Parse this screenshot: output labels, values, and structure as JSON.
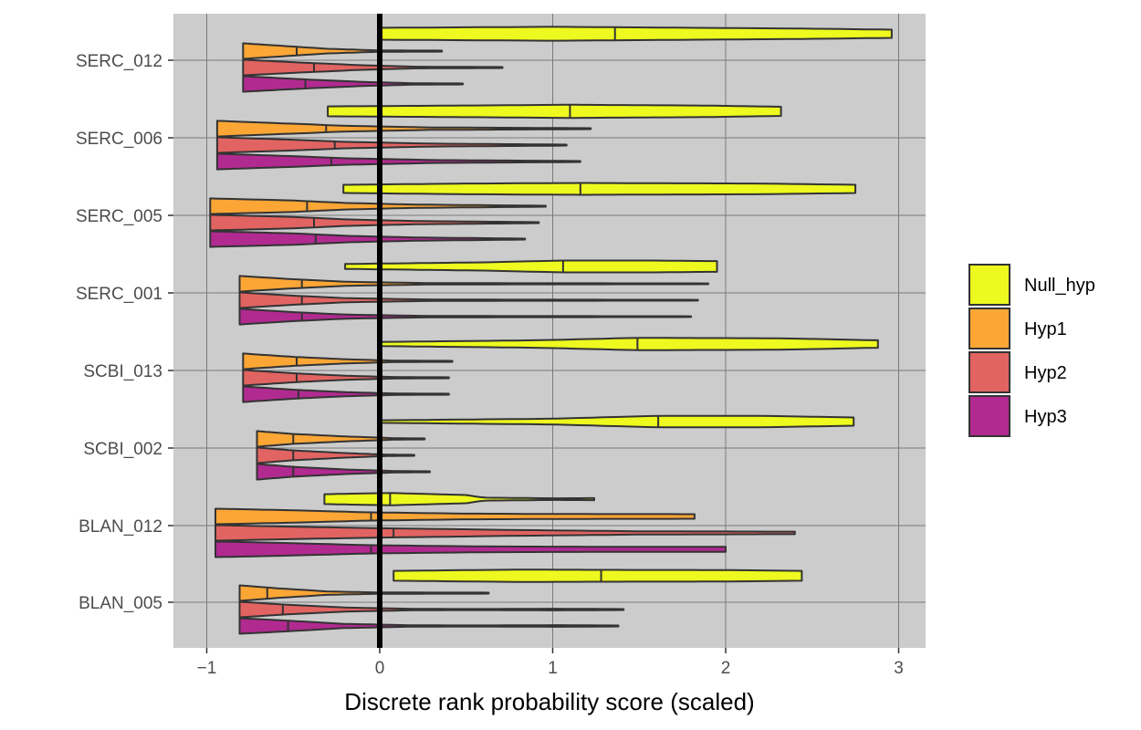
{
  "chart_data": {
    "type": "violin",
    "orientation": "horizontal",
    "xlabel": "Discrete rank probability score (scaled)",
    "ylabel": "",
    "xlim": [
      -1.2,
      3.15
    ],
    "x_ticks": [
      -1,
      0,
      1,
      2,
      3
    ],
    "x_tick_labels": [
      "−1",
      "0",
      "1",
      "2",
      "3"
    ],
    "reference_line_x": 0,
    "grid": true,
    "legend_position": "right",
    "categories": [
      "SERC_012",
      "SERC_006",
      "SERC_005",
      "SERC_001",
      "SCBI_013",
      "SCBI_002",
      "BLAN_012",
      "BLAN_005"
    ],
    "series": [
      {
        "name": "Null_hyp",
        "color": "#eefa1f",
        "violins": [
          {
            "min": -0.01,
            "max": 2.96,
            "median": 1.36,
            "profile": [
              [
                -0.01,
                0.72
              ],
              [
                1.0,
                0.85
              ],
              [
                1.36,
                0.8
              ],
              [
                2.5,
                0.62
              ],
              [
                2.96,
                0.5
              ]
            ]
          },
          {
            "min": -0.3,
            "max": 2.32,
            "median": 1.1,
            "profile": [
              [
                -0.3,
                0.6
              ],
              [
                0.8,
                0.75
              ],
              [
                1.1,
                0.8
              ],
              [
                1.9,
                0.7
              ],
              [
                2.32,
                0.55
              ]
            ]
          },
          {
            "min": -0.21,
            "max": 2.75,
            "median": 1.16,
            "profile": [
              [
                -0.21,
                0.5
              ],
              [
                0.5,
                0.65
              ],
              [
                1.16,
                0.72
              ],
              [
                2.2,
                0.65
              ],
              [
                2.75,
                0.5
              ]
            ]
          },
          {
            "min": -0.2,
            "max": 1.95,
            "median": 1.06,
            "profile": [
              [
                -0.2,
                0.3
              ],
              [
                0.6,
                0.5
              ],
              [
                1.06,
                0.72
              ],
              [
                1.6,
                0.72
              ],
              [
                1.95,
                0.65
              ]
            ]
          },
          {
            "min": -0.01,
            "max": 2.88,
            "median": 1.49,
            "profile": [
              [
                -0.01,
                0.25
              ],
              [
                0.9,
                0.45
              ],
              [
                1.49,
                0.75
              ],
              [
                2.3,
                0.7
              ],
              [
                2.88,
                0.45
              ]
            ]
          },
          {
            "min": -0.01,
            "max": 2.74,
            "median": 1.61,
            "profile": [
              [
                -0.01,
                0.15
              ],
              [
                1.0,
                0.35
              ],
              [
                1.61,
                0.7
              ],
              [
                2.2,
                0.7
              ],
              [
                2.74,
                0.5
              ]
            ]
          },
          {
            "min": -0.32,
            "max": 1.24,
            "median": 0.06,
            "profile": [
              [
                -0.32,
                0.6
              ],
              [
                0.06,
                0.75
              ],
              [
                0.5,
                0.5
              ],
              [
                0.6,
                0.18
              ],
              [
                1.0,
                0.1
              ],
              [
                1.24,
                0.12
              ]
            ]
          },
          {
            "min": 0.08,
            "max": 2.44,
            "median": 1.28,
            "profile": [
              [
                0.08,
                0.6
              ],
              [
                0.8,
                0.75
              ],
              [
                1.28,
                0.72
              ],
              [
                2.0,
                0.7
              ],
              [
                2.44,
                0.6
              ]
            ]
          }
        ]
      },
      {
        "name": "Hyp1",
        "color": "#fca636",
        "violins": [
          {
            "min": -0.79,
            "max": 0.36,
            "median": -0.48,
            "profile": [
              [
                -0.79,
                0.95
              ],
              [
                -0.5,
                0.55
              ],
              [
                -0.3,
                0.28
              ],
              [
                0.0,
                0.08
              ],
              [
                0.36,
                0.06
              ]
            ]
          },
          {
            "min": -0.94,
            "max": 1.22,
            "median": -0.31,
            "profile": [
              [
                -0.94,
                0.95
              ],
              [
                -0.5,
                0.6
              ],
              [
                -0.2,
                0.35
              ],
              [
                0.3,
                0.15
              ],
              [
                1.22,
                0.06
              ]
            ]
          },
          {
            "min": -0.98,
            "max": 0.96,
            "median": -0.42,
            "profile": [
              [
                -0.98,
                0.95
              ],
              [
                -0.5,
                0.7
              ],
              [
                -0.2,
                0.4
              ],
              [
                0.2,
                0.2
              ],
              [
                0.96,
                0.06
              ]
            ]
          },
          {
            "min": -0.81,
            "max": 1.9,
            "median": -0.45,
            "profile": [
              [
                -0.81,
                0.95
              ],
              [
                -0.5,
                0.55
              ],
              [
                -0.2,
                0.25
              ],
              [
                0.3,
                0.08
              ],
              [
                1.9,
                0.05
              ]
            ]
          },
          {
            "min": -0.79,
            "max": 0.42,
            "median": -0.48,
            "profile": [
              [
                -0.79,
                0.95
              ],
              [
                -0.5,
                0.55
              ],
              [
                -0.2,
                0.25
              ],
              [
                0.1,
                0.08
              ],
              [
                0.42,
                0.06
              ]
            ]
          },
          {
            "min": -0.71,
            "max": 0.26,
            "median": -0.5,
            "profile": [
              [
                -0.71,
                0.95
              ],
              [
                -0.5,
                0.6
              ],
              [
                -0.2,
                0.3
              ],
              [
                0.1,
                0.08
              ],
              [
                0.26,
                0.06
              ]
            ]
          },
          {
            "min": -0.95,
            "max": 1.82,
            "median": -0.05,
            "profile": [
              [
                -0.95,
                0.95
              ],
              [
                -0.5,
                0.75
              ],
              [
                -0.05,
                0.5
              ],
              [
                0.5,
                0.35
              ],
              [
                1.0,
                0.3
              ],
              [
                1.82,
                0.28
              ]
            ]
          },
          {
            "min": -0.81,
            "max": 0.63,
            "median": -0.65,
            "profile": [
              [
                -0.81,
                0.95
              ],
              [
                -0.6,
                0.6
              ],
              [
                -0.3,
                0.2
              ],
              [
                0.0,
                0.08
              ],
              [
                0.63,
                0.06
              ]
            ]
          }
        ]
      },
      {
        "name": "Hyp2",
        "color": "#e16462",
        "violins": [
          {
            "min": -0.79,
            "max": 0.71,
            "median": -0.38,
            "profile": [
              [
                -0.79,
                0.95
              ],
              [
                -0.4,
                0.55
              ],
              [
                -0.1,
                0.28
              ],
              [
                0.2,
                0.1
              ],
              [
                0.71,
                0.06
              ]
            ]
          },
          {
            "min": -0.94,
            "max": 1.08,
            "median": -0.26,
            "profile": [
              [
                -0.94,
                0.95
              ],
              [
                -0.5,
                0.65
              ],
              [
                -0.2,
                0.4
              ],
              [
                0.3,
                0.18
              ],
              [
                1.08,
                0.06
              ]
            ]
          },
          {
            "min": -0.98,
            "max": 0.92,
            "median": -0.38,
            "profile": [
              [
                -0.98,
                0.95
              ],
              [
                -0.5,
                0.7
              ],
              [
                -0.2,
                0.4
              ],
              [
                0.2,
                0.2
              ],
              [
                0.92,
                0.06
              ]
            ]
          },
          {
            "min": -0.81,
            "max": 1.84,
            "median": -0.45,
            "profile": [
              [
                -0.81,
                0.95
              ],
              [
                -0.5,
                0.55
              ],
              [
                -0.2,
                0.25
              ],
              [
                0.3,
                0.08
              ],
              [
                1.84,
                0.05
              ]
            ]
          },
          {
            "min": -0.79,
            "max": 0.4,
            "median": -0.48,
            "profile": [
              [
                -0.79,
                0.95
              ],
              [
                -0.5,
                0.55
              ],
              [
                -0.2,
                0.25
              ],
              [
                0.1,
                0.08
              ],
              [
                0.4,
                0.06
              ]
            ]
          },
          {
            "min": -0.71,
            "max": 0.2,
            "median": -0.5,
            "profile": [
              [
                -0.71,
                0.95
              ],
              [
                -0.5,
                0.6
              ],
              [
                -0.2,
                0.28
              ],
              [
                0.05,
                0.08
              ],
              [
                0.2,
                0.06
              ]
            ]
          },
          {
            "min": -0.95,
            "max": 2.4,
            "median": 0.08,
            "profile": [
              [
                -0.95,
                0.95
              ],
              [
                -0.5,
                0.75
              ],
              [
                0.08,
                0.55
              ],
              [
                0.8,
                0.35
              ],
              [
                1.5,
                0.2
              ],
              [
                2.4,
                0.15
              ]
            ]
          },
          {
            "min": -0.81,
            "max": 1.41,
            "median": -0.56,
            "profile": [
              [
                -0.81,
                0.95
              ],
              [
                -0.55,
                0.6
              ],
              [
                -0.2,
                0.25
              ],
              [
                0.2,
                0.08
              ],
              [
                0.6,
                0.06
              ],
              [
                1.0,
                0.1
              ],
              [
                1.41,
                0.06
              ]
            ]
          }
        ]
      },
      {
        "name": "Hyp3",
        "color": "#b12a90",
        "violins": [
          {
            "min": -0.79,
            "max": 0.48,
            "median": -0.43,
            "profile": [
              [
                -0.79,
                0.95
              ],
              [
                -0.43,
                0.55
              ],
              [
                -0.1,
                0.25
              ],
              [
                0.2,
                0.08
              ],
              [
                0.48,
                0.06
              ]
            ]
          },
          {
            "min": -0.94,
            "max": 1.16,
            "median": -0.28,
            "profile": [
              [
                -0.94,
                0.95
              ],
              [
                -0.5,
                0.65
              ],
              [
                -0.2,
                0.4
              ],
              [
                0.3,
                0.18
              ],
              [
                1.16,
                0.06
              ]
            ]
          },
          {
            "min": -0.98,
            "max": 0.84,
            "median": -0.37,
            "profile": [
              [
                -0.98,
                0.95
              ],
              [
                -0.5,
                0.7
              ],
              [
                -0.2,
                0.4
              ],
              [
                0.2,
                0.2
              ],
              [
                0.84,
                0.06
              ]
            ]
          },
          {
            "min": -0.81,
            "max": 1.8,
            "median": -0.45,
            "profile": [
              [
                -0.81,
                0.95
              ],
              [
                -0.5,
                0.55
              ],
              [
                -0.2,
                0.25
              ],
              [
                0.3,
                0.08
              ],
              [
                1.8,
                0.05
              ]
            ]
          },
          {
            "min": -0.79,
            "max": 0.4,
            "median": -0.47,
            "profile": [
              [
                -0.79,
                0.95
              ],
              [
                -0.5,
                0.55
              ],
              [
                -0.2,
                0.25
              ],
              [
                0.1,
                0.08
              ],
              [
                0.4,
                0.06
              ]
            ]
          },
          {
            "min": -0.71,
            "max": 0.29,
            "median": -0.5,
            "profile": [
              [
                -0.71,
                0.95
              ],
              [
                -0.5,
                0.6
              ],
              [
                -0.2,
                0.28
              ],
              [
                0.1,
                0.08
              ],
              [
                0.29,
                0.06
              ]
            ]
          },
          {
            "min": -0.95,
            "max": 2.0,
            "median": -0.05,
            "profile": [
              [
                -0.95,
                0.95
              ],
              [
                -0.5,
                0.75
              ],
              [
                -0.05,
                0.5
              ],
              [
                0.6,
                0.35
              ],
              [
                1.4,
                0.3
              ],
              [
                2.0,
                0.3
              ]
            ]
          },
          {
            "min": -0.81,
            "max": 1.38,
            "median": -0.53,
            "profile": [
              [
                -0.81,
                0.95
              ],
              [
                -0.53,
                0.65
              ],
              [
                -0.2,
                0.25
              ],
              [
                0.2,
                0.08
              ],
              [
                0.6,
                0.06
              ],
              [
                1.0,
                0.1
              ],
              [
                1.38,
                0.06
              ]
            ]
          }
        ]
      }
    ]
  }
}
